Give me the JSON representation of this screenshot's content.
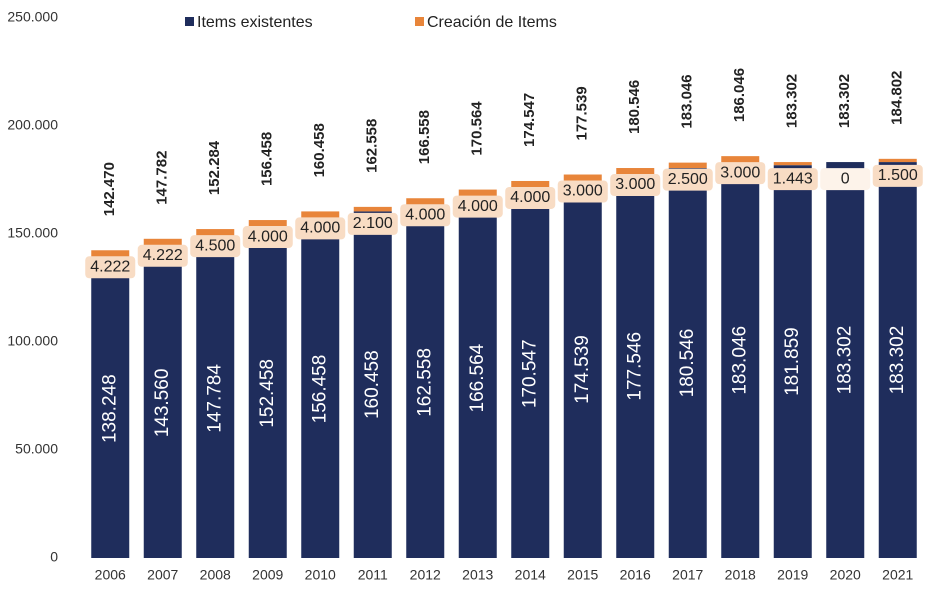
{
  "chart_data": {
    "type": "stacked-bar",
    "categories": [
      "2006",
      "2007",
      "2008",
      "2009",
      "2010",
      "2011",
      "2012",
      "2013",
      "2014",
      "2015",
      "2016",
      "2017",
      "2018",
      "2019",
      "2020",
      "2021"
    ],
    "series": [
      {
        "name": "Items existentes",
        "color": "#1f2d5c",
        "values": [
          138248,
          143560,
          147784,
          152458,
          156458,
          160458,
          162558,
          166564,
          170547,
          174539,
          177546,
          180546,
          183046,
          181859,
          183302,
          183302
        ],
        "value_labels": [
          "138.248",
          "143.560",
          "147.784",
          "152.458",
          "156.458",
          "160.458",
          "162.558",
          "166.564",
          "170.547",
          "174.539",
          "177.546",
          "180.546",
          "183.046",
          "181.859",
          "183.302",
          "183.302"
        ]
      },
      {
        "name": "Creación de Items",
        "color": "#e8853a",
        "values": [
          4222,
          4222,
          4500,
          4000,
          4000,
          2100,
          4000,
          4000,
          4000,
          3000,
          3000,
          2500,
          3000,
          1443,
          0,
          1500
        ],
        "value_labels": [
          "4.222",
          "4.222",
          "4.500",
          "4.000",
          "4.000",
          "2.100",
          "4.000",
          "4.000",
          "4.000",
          "3.000",
          "3.000",
          "2.500",
          "3.000",
          "1.443",
          "0",
          "1.500"
        ]
      }
    ],
    "totals": {
      "values": [
        142470,
        147782,
        152284,
        156458,
        160458,
        162558,
        166558,
        170564,
        174547,
        177539,
        180546,
        183046,
        186046,
        183302,
        183302,
        184802
      ],
      "value_labels": [
        "142.470",
        "147.782",
        "152.284",
        "156.458",
        "160.458",
        "162.558",
        "166.558",
        "170.564",
        "174.547",
        "177.539",
        "180.546",
        "183.046",
        "186.046",
        "183.302",
        "183.302",
        "184.802"
      ]
    },
    "ylim": [
      0,
      250000
    ],
    "yticks": [
      0,
      {
        "value": 50000,
        "label": "50.000"
      },
      {
        "value": 100000,
        "label": "100.000"
      },
      {
        "value": 150000,
        "label": "150.000"
      },
      {
        "value": 200000,
        "label": "200.000"
      },
      {
        "value": 250000,
        "label": "250.000"
      }
    ],
    "grid": false,
    "legend": "top"
  }
}
